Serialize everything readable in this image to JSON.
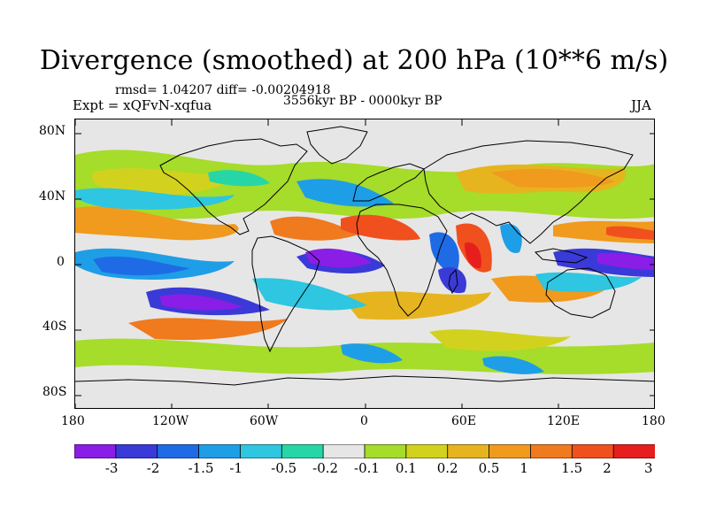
{
  "title": "Divergence (smoothed) at 200 hPa (10**6 m/s)",
  "stats_line": "rmsd= 1.04207 diff= -0.00204918",
  "experiment": "Expt = xQFvN-xqfua",
  "period": "3556kyr BP - 0000kyr BP",
  "season": "JJA",
  "y_axis_labels": [
    "80N",
    "40N",
    "0",
    "40S",
    "80S"
  ],
  "x_axis_labels": [
    "180",
    "120W",
    "60W",
    "0",
    "60E",
    "120E",
    "180"
  ],
  "colorbar": {
    "colors": [
      "#8a1ee6",
      "#3a3ad8",
      "#1f6be6",
      "#1e9ee6",
      "#2ec6e0",
      "#26d6a6",
      "#e6e6e6",
      "#a6dc2a",
      "#d2d21e",
      "#e6b41e",
      "#f09a1e",
      "#f07a1e",
      "#f0501e",
      "#e61e1e"
    ],
    "labels": [
      "-3",
      "-2",
      "-1.5",
      "-1",
      "-0.5",
      "-0.2",
      "-0.1",
      "0.1",
      "0.2",
      "0.5",
      "1",
      "1.5",
      "2",
      "3"
    ]
  },
  "field_colors": {
    "neg3": "#8a1ee6",
    "neg2": "#3a3ad8",
    "neg15": "#1f6be6",
    "neg1": "#1e9ee6",
    "neg05": "#2ec6e0",
    "neg02": "#26d6a6",
    "pos01": "#a6dc2a",
    "pos02": "#d2d21e",
    "pos05": "#e6b41e",
    "pos1": "#f09a1e",
    "pos15": "#f07a1e",
    "pos2": "#f0501e",
    "pos3": "#e61e1e"
  }
}
